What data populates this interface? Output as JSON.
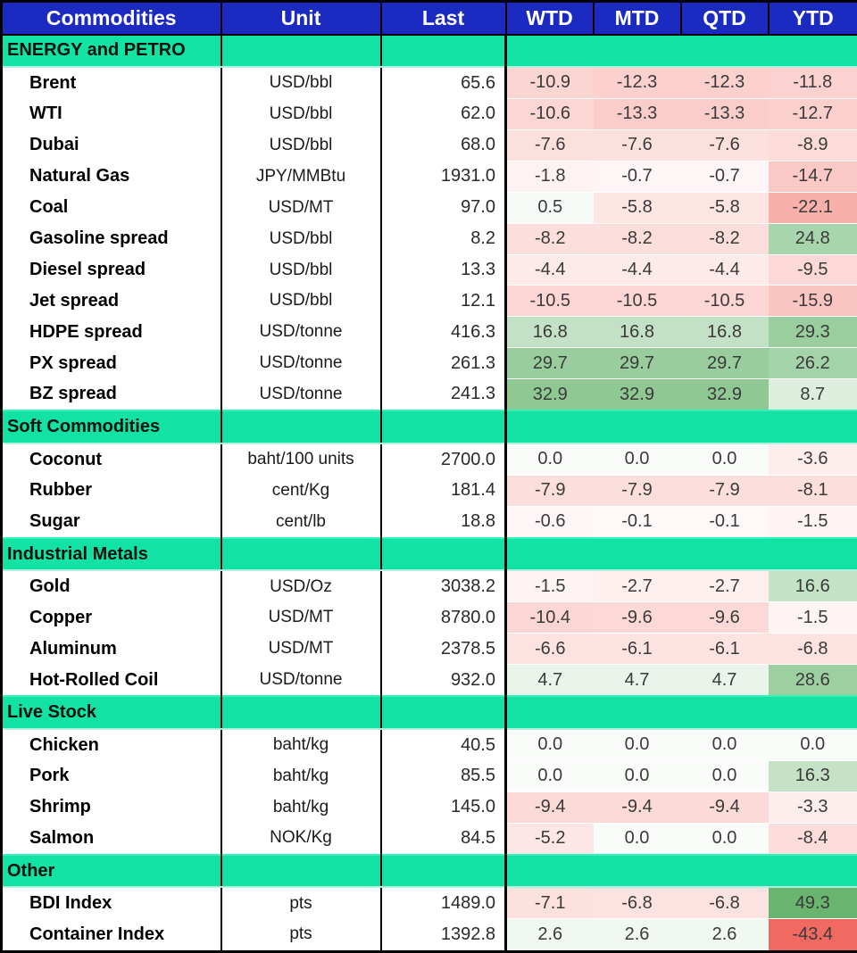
{
  "colors": {
    "header_bg": "#1b2ac1",
    "header_text": "#ffffff",
    "section_bg": "#12e3a4",
    "negative_max": "#f1655c",
    "positive_max": "#69b56f",
    "scale_max": 45,
    "tint_baseline": 2
  },
  "chart_data": {
    "type": "table",
    "title": "Commodities performance table (Last price and WTD/MTD/QTD/YTD % change)",
    "columns": [
      "Commodities",
      "Unit",
      "Last",
      "WTD",
      "MTD",
      "QTD",
      "YTD"
    ],
    "sections": [
      {
        "label": "ENERGY and PETRO",
        "rows": [
          {
            "name": "Brent",
            "unit": "USD/bbl",
            "last": "65.6",
            "changes": [
              -10.9,
              -12.3,
              -12.3,
              -11.8
            ]
          },
          {
            "name": "WTI",
            "unit": "USD/bbl",
            "last": "62.0",
            "changes": [
              -10.6,
              -13.3,
              -13.3,
              -12.7
            ]
          },
          {
            "name": "Dubai",
            "unit": "USD/bbl",
            "last": "68.0",
            "changes": [
              -7.6,
              -7.6,
              -7.6,
              -8.9
            ]
          },
          {
            "name": "Natural Gas",
            "unit": "JPY/MMBtu",
            "last": "1931.0",
            "changes": [
              -1.8,
              -0.7,
              -0.7,
              -14.7
            ]
          },
          {
            "name": "Coal",
            "unit": "USD/MT",
            "last": "97.0",
            "changes": [
              0.5,
              -5.8,
              -5.8,
              -22.1
            ]
          },
          {
            "name": "Gasoline spread",
            "unit": "USD/bbl",
            "last": "8.2",
            "changes": [
              -8.2,
              -8.2,
              -8.2,
              24.8
            ]
          },
          {
            "name": "Diesel spread",
            "unit": "USD/bbl",
            "last": "13.3",
            "changes": [
              -4.4,
              -4.4,
              -4.4,
              -9.5
            ]
          },
          {
            "name": "Jet spread",
            "unit": "USD/bbl",
            "last": "12.1",
            "changes": [
              -10.5,
              -10.5,
              -10.5,
              -15.9
            ]
          },
          {
            "name": "HDPE spread",
            "unit": "USD/tonne",
            "last": "416.3",
            "changes": [
              16.8,
              16.8,
              16.8,
              29.3
            ]
          },
          {
            "name": "PX spread",
            "unit": "USD/tonne",
            "last": "261.3",
            "changes": [
              29.7,
              29.7,
              29.7,
              26.2
            ]
          },
          {
            "name": "BZ spread",
            "unit": "USD/tonne",
            "last": "241.3",
            "changes": [
              32.9,
              32.9,
              32.9,
              8.7
            ]
          }
        ]
      },
      {
        "label": "Soft Commodities",
        "rows": [
          {
            "name": "Coconut",
            "unit": "baht/100 units",
            "last": "2700.0",
            "changes": [
              0.0,
              0.0,
              0.0,
              -3.6
            ]
          },
          {
            "name": "Rubber",
            "unit": "cent/Kg",
            "last": "181.4",
            "changes": [
              -7.9,
              -7.9,
              -7.9,
              -8.1
            ]
          },
          {
            "name": "Sugar",
            "unit": "cent/lb",
            "last": "18.8",
            "changes": [
              -0.6,
              -0.1,
              -0.1,
              -1.5
            ]
          }
        ]
      },
      {
        "label": "Industrial Metals",
        "rows": [
          {
            "name": "Gold",
            "unit": "USD/Oz",
            "last": "3038.2",
            "changes": [
              -1.5,
              -2.7,
              -2.7,
              16.6
            ]
          },
          {
            "name": "Copper",
            "unit": "USD/MT",
            "last": "8780.0",
            "changes": [
              -10.4,
              -9.6,
              -9.6,
              -1.5
            ]
          },
          {
            "name": "Aluminum",
            "unit": "USD/MT",
            "last": "2378.5",
            "changes": [
              -6.6,
              -6.1,
              -6.1,
              -6.8
            ]
          },
          {
            "name": "Hot-Rolled Coil",
            "unit": "USD/tonne",
            "last": "932.0",
            "changes": [
              4.7,
              4.7,
              4.7,
              28.6
            ]
          }
        ]
      },
      {
        "label": "Live Stock",
        "rows": [
          {
            "name": "Chicken",
            "unit": "baht/kg",
            "last": "40.5",
            "changes": [
              0.0,
              0.0,
              0.0,
              0.0
            ]
          },
          {
            "name": "Pork",
            "unit": "baht/kg",
            "last": "85.5",
            "changes": [
              0.0,
              0.0,
              0.0,
              16.3
            ]
          },
          {
            "name": "Shrimp",
            "unit": "baht/kg",
            "last": "145.0",
            "changes": [
              -9.4,
              -9.4,
              -9.4,
              -3.3
            ]
          },
          {
            "name": "Salmon",
            "unit": "NOK/Kg",
            "last": "84.5",
            "changes": [
              -5.2,
              0.0,
              0.0,
              -8.4
            ]
          }
        ]
      },
      {
        "label": "Other",
        "rows": [
          {
            "name": "BDI Index",
            "unit": "pts",
            "last": "1489.0",
            "changes": [
              -7.1,
              -6.8,
              -6.8,
              49.3
            ]
          },
          {
            "name": "Container Index",
            "unit": "pts",
            "last": "1392.8",
            "changes": [
              2.6,
              2.6,
              2.6,
              -43.4
            ]
          }
        ]
      }
    ]
  }
}
